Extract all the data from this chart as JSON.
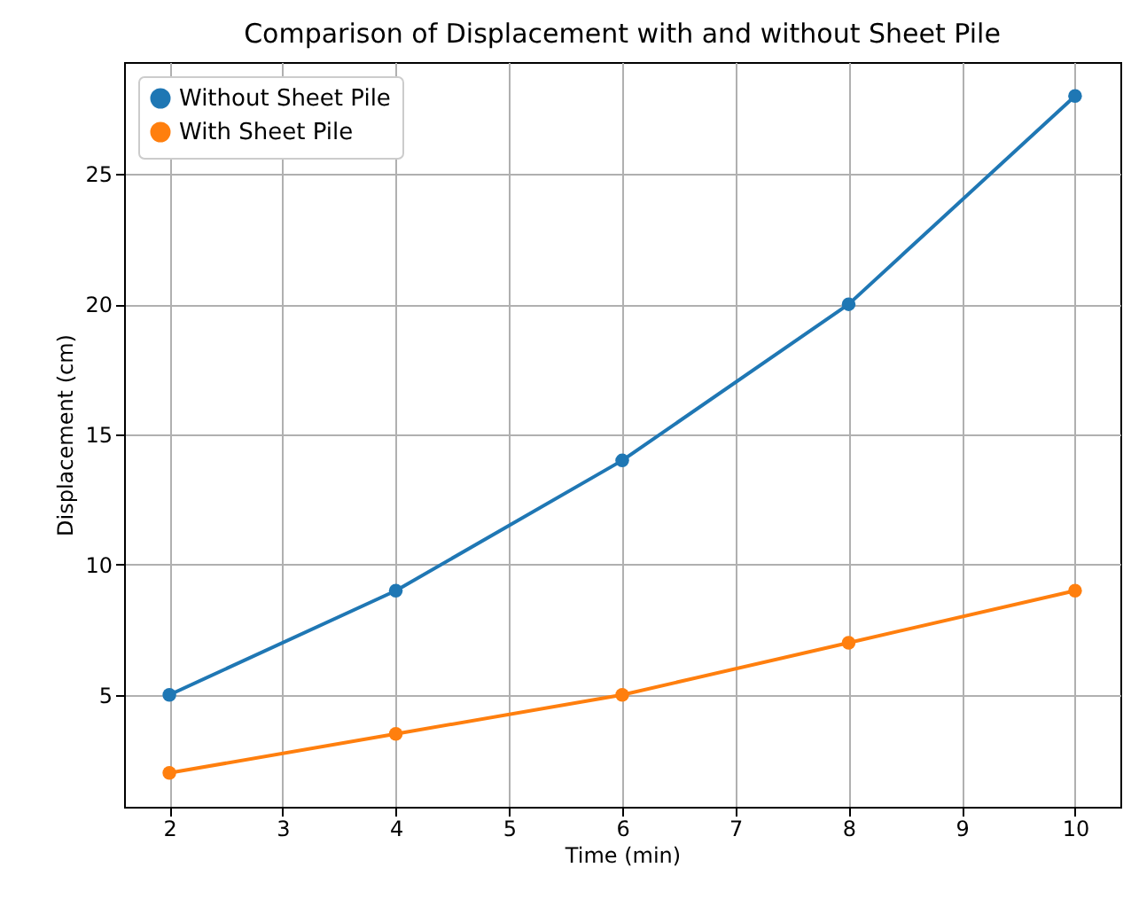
{
  "chart_data": {
    "type": "line",
    "title": "Comparison of Displacement with and without Sheet Pile",
    "xlabel": "Time (min)",
    "ylabel": "Displacement (cm)",
    "x": [
      2,
      4,
      6,
      8,
      10
    ],
    "series": [
      {
        "name": "Without Sheet Pile",
        "color": "#1f77b4",
        "values": [
          5,
          9,
          14,
          20,
          28
        ]
      },
      {
        "name": "With Sheet Pile",
        "color": "#ff7f0e",
        "values": [
          2,
          3.5,
          5,
          7,
          9
        ]
      }
    ],
    "xlim": [
      1.6,
      10.4
    ],
    "xticks": [
      2,
      3,
      4,
      5,
      6,
      7,
      8,
      9,
      10
    ],
    "ylim": [
      0.7,
      29.3
    ],
    "yticks": [
      5,
      10,
      15,
      20,
      25
    ],
    "grid": true,
    "legend": "top left",
    "marker": "circle",
    "line_style": "solid"
  }
}
